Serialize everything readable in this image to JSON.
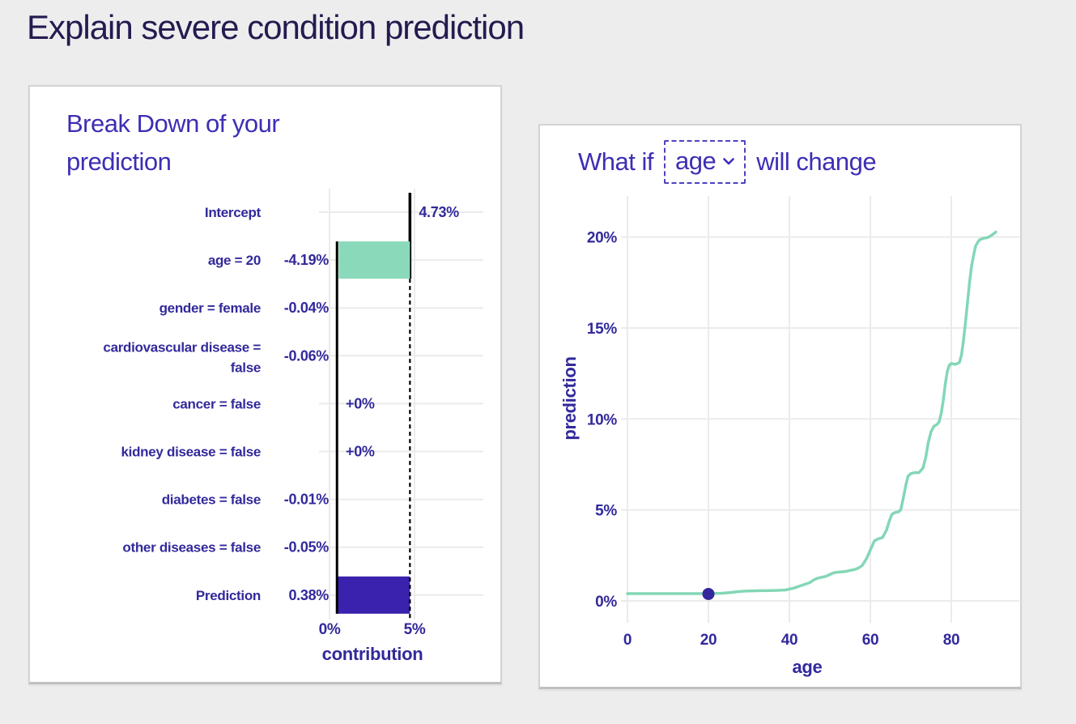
{
  "page": {
    "title": "Explain severe condition prediction",
    "background_color": "#eeedee"
  },
  "colors": {
    "title_text": "#221c4f",
    "heading_text": "#3d2eb4",
    "chart_text": "#32299b",
    "teal_bar": "#8ad9bb",
    "teal_line": "#83d7b6",
    "purple_bar": "#3a21ae",
    "marker_dot": "#34279b",
    "gridline": "#ebebeb",
    "guide_black": "#000000"
  },
  "breakdown_panel": {
    "heading": "Break Down of your prediction",
    "chart_data": {
      "type": "bar",
      "orientation": "horizontal",
      "title": "Break Down of your prediction",
      "xlabel": "contribution",
      "xlim": [
        0,
        5
      ],
      "x_ticks": [
        {
          "label": "0%",
          "value": 0
        },
        {
          "label": "5%",
          "value": 5
        }
      ],
      "grid": true,
      "rows": [
        {
          "label": "Intercept",
          "kind": "intercept",
          "value": 4.73,
          "value_label": "4.73%"
        },
        {
          "label": "age = 20",
          "kind": "contribution",
          "value": -4.19,
          "value_label": "-4.19%"
        },
        {
          "label": "gender = female",
          "kind": "contribution",
          "value": -0.04,
          "value_label": "-0.04%"
        },
        {
          "label": "cardiovascular disease = false",
          "label_lines": [
            "cardiovascular disease =",
            "false"
          ],
          "kind": "contribution",
          "value": -0.06,
          "value_label": "-0.06%"
        },
        {
          "label": "cancer = false",
          "kind": "contribution",
          "value": 0,
          "value_label": "+0%"
        },
        {
          "label": "kidney disease = false",
          "kind": "contribution",
          "value": 0,
          "value_label": "+0%"
        },
        {
          "label": "diabetes = false",
          "kind": "contribution",
          "value": -0.01,
          "value_label": "-0.01%"
        },
        {
          "label": "other diseases = false",
          "kind": "contribution",
          "value": -0.05,
          "value_label": "-0.05%"
        },
        {
          "label": "Prediction",
          "kind": "prediction",
          "value": 0.38,
          "value_label": "0.38%"
        }
      ]
    }
  },
  "whatif_panel": {
    "heading_prefix": "What if",
    "heading_suffix": "will change",
    "dropdown": {
      "value": "age",
      "icon": "chevron-down-icon"
    },
    "chart_data": {
      "type": "line",
      "xlabel": "age",
      "ylabel": "prediction",
      "xlim": [
        0,
        96
      ],
      "ylim": [
        0,
        22
      ],
      "grid": true,
      "x_ticks": [
        {
          "label": "0",
          "value": 0
        },
        {
          "label": "20",
          "value": 20
        },
        {
          "label": "40",
          "value": 40
        },
        {
          "label": "60",
          "value": 60
        },
        {
          "label": "80",
          "value": 80
        }
      ],
      "y_ticks": [
        {
          "label": "0%",
          "value": 0
        },
        {
          "label": "5%",
          "value": 5
        },
        {
          "label": "10%",
          "value": 10
        },
        {
          "label": "15%",
          "value": 15
        },
        {
          "label": "20%",
          "value": 20
        }
      ],
      "series": [
        {
          "name": "ceteris-paribus-age",
          "points": [
            [
              0,
              0.4
            ],
            [
              4,
              0.4
            ],
            [
              8,
              0.4
            ],
            [
              12,
              0.4
            ],
            [
              16,
              0.4
            ],
            [
              20,
              0.4
            ],
            [
              23,
              0.42
            ],
            [
              25,
              0.45
            ],
            [
              27,
              0.5
            ],
            [
              29,
              0.54
            ],
            [
              31,
              0.55
            ],
            [
              33,
              0.56
            ],
            [
              35,
              0.57
            ],
            [
              37,
              0.58
            ],
            [
              39,
              0.6
            ],
            [
              41,
              0.7
            ],
            [
              43,
              0.85
            ],
            [
              45,
              1.0
            ],
            [
              46,
              1.15
            ],
            [
              47,
              1.25
            ],
            [
              48,
              1.3
            ],
            [
              49,
              1.35
            ],
            [
              50,
              1.45
            ],
            [
              51,
              1.55
            ],
            [
              52,
              1.58
            ],
            [
              54,
              1.62
            ],
            [
              55,
              1.68
            ],
            [
              56,
              1.72
            ],
            [
              57,
              1.8
            ],
            [
              58,
              1.95
            ],
            [
              59,
              2.3
            ],
            [
              60,
              2.8
            ],
            [
              61,
              3.3
            ],
            [
              62,
              3.42
            ],
            [
              63,
              3.48
            ],
            [
              64,
              3.9
            ],
            [
              64.7,
              4.4
            ],
            [
              65.3,
              4.75
            ],
            [
              66,
              4.85
            ],
            [
              67,
              4.9
            ],
            [
              67.5,
              5.0
            ],
            [
              68,
              5.5
            ],
            [
              68.7,
              6.3
            ],
            [
              69.3,
              6.85
            ],
            [
              70,
              7.0
            ],
            [
              71,
              7.05
            ],
            [
              72,
              7.05
            ],
            [
              73,
              7.3
            ],
            [
              73.7,
              7.9
            ],
            [
              74.3,
              8.7
            ],
            [
              75,
              9.3
            ],
            [
              75.7,
              9.6
            ],
            [
              76.5,
              9.7
            ],
            [
              77,
              9.85
            ],
            [
              77.5,
              10.3
            ],
            [
              78,
              11.0
            ],
            [
              78.5,
              11.9
            ],
            [
              79,
              12.6
            ],
            [
              79.5,
              12.95
            ],
            [
              80,
              13.05
            ],
            [
              81,
              13.0
            ],
            [
              82,
              13.1
            ],
            [
              82.5,
              13.5
            ],
            [
              83,
              14.3
            ],
            [
              83.5,
              15.3
            ],
            [
              84,
              16.4
            ],
            [
              84.5,
              17.5
            ],
            [
              85,
              18.4
            ],
            [
              85.5,
              19.0
            ],
            [
              86,
              19.5
            ],
            [
              86.5,
              19.7
            ],
            [
              87,
              19.85
            ],
            [
              88,
              19.93
            ],
            [
              89,
              19.97
            ],
            [
              90,
              20.1
            ],
            [
              91,
              20.27
            ]
          ]
        }
      ],
      "marker": {
        "x": 20,
        "y": 0.38
      }
    }
  }
}
